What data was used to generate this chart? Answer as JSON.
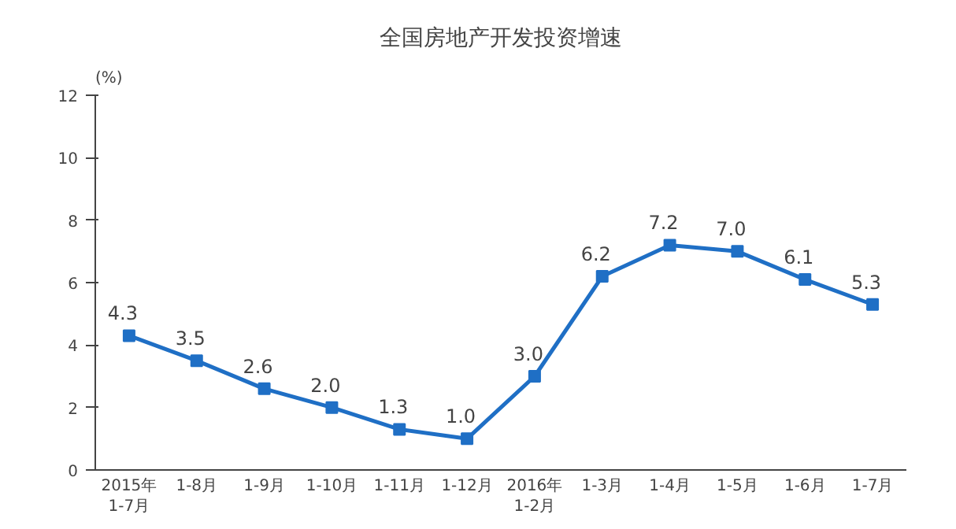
{
  "chart_data": {
    "type": "line",
    "title": "全国房地产开发投资增速",
    "ylabel": "(%)",
    "categories": [
      "2015年\n1-7月",
      "1-8月",
      "1-9月",
      "1-10月",
      "1-11月",
      "1-12月",
      "2016年\n1-2月",
      "1-3月",
      "1-4月",
      "1-5月",
      "1-6月",
      "1-7月"
    ],
    "series": [
      {
        "color": "#1f6fc5",
        "values": [
          4.3,
          3.5,
          2.6,
          2.0,
          1.3,
          1.0,
          3.0,
          6.2,
          7.2,
          7.0,
          6.1,
          5.3
        ],
        "value_labels": [
          "4.3",
          "3.5",
          "2.6",
          "2.0",
          "1.3",
          "1.0",
          "3.0",
          "6.2",
          "7.2",
          "7.0",
          "6.1",
          "5.3"
        ]
      }
    ],
    "ylim": [
      0,
      12
    ],
    "yticks": [
      0,
      2,
      4,
      6,
      8,
      10,
      12
    ],
    "grid": false,
    "marker": "square",
    "line_style": "solid"
  }
}
